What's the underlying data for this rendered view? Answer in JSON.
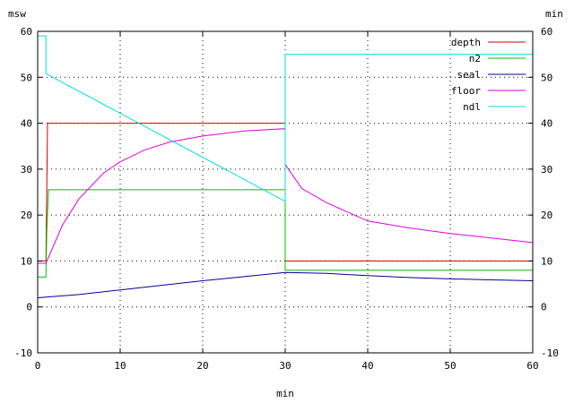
{
  "chart_data": {
    "type": "line",
    "xlabel": "min",
    "ylabel_left": "msw",
    "ylabel_right": "min",
    "xlim": [
      0,
      60
    ],
    "ylim": [
      -10,
      60
    ],
    "x_ticks": [
      0,
      10,
      20,
      30,
      40,
      50,
      60
    ],
    "y_ticks": [
      -10,
      0,
      10,
      20,
      30,
      40,
      50,
      60
    ],
    "grid": true,
    "legend_position": "top-right",
    "series": [
      {
        "name": "depth",
        "color": "#d40000",
        "x": [
          0,
          1,
          1.2,
          30,
          30,
          60
        ],
        "y": [
          10,
          10,
          40,
          40,
          10,
          10
        ]
      },
      {
        "name": "n2",
        "color": "#00c000",
        "x": [
          0,
          1,
          1.1,
          1.3,
          30,
          30,
          60
        ],
        "y": [
          6.5,
          6.5,
          16,
          25.5,
          25.5,
          8,
          8
        ]
      },
      {
        "name": "seal",
        "color": "#0000a0",
        "x": [
          0,
          5,
          10,
          15,
          20,
          25,
          30,
          35,
          40,
          45,
          50,
          55,
          60
        ],
        "y": [
          2,
          2.7,
          3.7,
          4.7,
          5.7,
          6.6,
          7.5,
          7.3,
          6.8,
          6.4,
          6.1,
          5.9,
          5.7
        ]
      },
      {
        "name": "floor",
        "color": "#e000e0",
        "x": [
          0,
          1,
          3,
          5,
          8,
          10,
          13,
          16,
          20,
          25,
          30,
          30,
          32,
          35,
          40,
          45,
          50,
          55,
          60
        ],
        "y": [
          9.5,
          9.5,
          17.8,
          23.5,
          29.2,
          31.6,
          34.2,
          35.9,
          37.2,
          38.3,
          38.8,
          31,
          25.8,
          22.7,
          18.7,
          17.2,
          16,
          15,
          14
        ]
      },
      {
        "name": "ndl",
        "color": "#00e0e0",
        "x": [
          0,
          1,
          1,
          30,
          30,
          60
        ],
        "y": [
          59,
          59,
          50.8,
          23,
          55,
          55
        ]
      }
    ]
  }
}
